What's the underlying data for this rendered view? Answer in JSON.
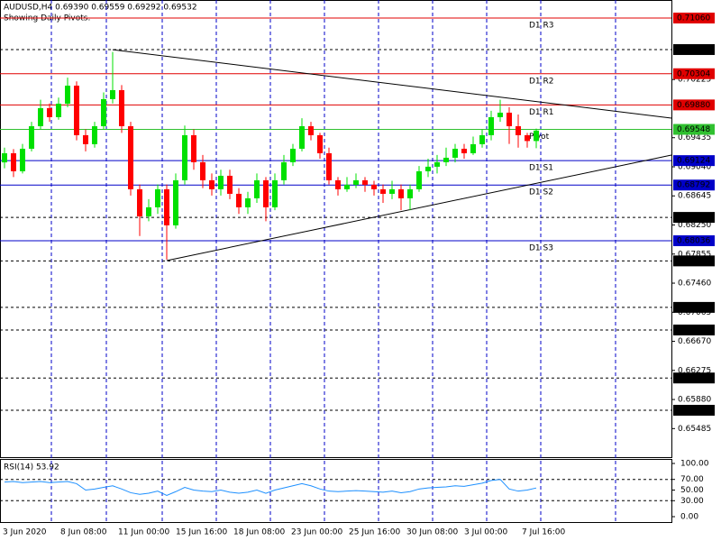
{
  "chart_data": {
    "type": "candlestick",
    "title": "AUDUSD,H4  0.69390 0.69559 0.69292 0.69532",
    "subtitle": "Showing Daily Pivots.",
    "ylim": [
      0.65085,
      0.71305
    ],
    "yticks": [
      0.70225,
      0.69435,
      {
        "value": 0.6904,
        "label": "0.69040"
      },
      0.68645,
      {
        "value": 0.6825,
        "label": "0.68250"
      },
      0.67855,
      {
        "value": 0.6746,
        "label": "0.67460"
      },
      0.67065,
      {
        "value": 0.6667,
        "label": "0.66670"
      },
      0.66275,
      {
        "value": 0.6588,
        "label": "0.65880"
      },
      0.65485
    ],
    "levels": [
      {
        "value": 0.7106,
        "label": "0.71060",
        "name": "D1 R3",
        "color": "#e00000"
      },
      {
        "value": 0.70632,
        "label": "0.70632",
        "color": "#000000"
      },
      {
        "value": 0.70304,
        "label": "0.70304",
        "name": "D1 R2",
        "color": "#e00000"
      },
      {
        "value": 0.6988,
        "label": "0.69880",
        "name": "D1 R1",
        "color": "#e00000"
      },
      {
        "value": 0.69548,
        "label": "0.69548",
        "name": "Pivot",
        "color": "#30c030"
      },
      {
        "value": 0.69124,
        "label": "0.69124",
        "name": "D1 S1",
        "color": "#0000c8"
      },
      {
        "value": 0.68792,
        "label": "0.68792",
        "name": "D1 S2",
        "color": "#0000c8"
      },
      {
        "value": 0.68353,
        "label": "0.68353",
        "color": "#000000"
      },
      {
        "value": 0.68036,
        "label": "0.68036",
        "name": "D1 S3",
        "color": "#0000c8"
      },
      {
        "value": 0.67762,
        "label": "0.67762",
        "color": "#000000"
      },
      {
        "value": 0.67131,
        "label": "0.67131",
        "color": "#000000"
      },
      {
        "value": 0.66824,
        "label": "0.66824",
        "color": "#000000"
      },
      {
        "value": 0.66172,
        "label": "0.66172",
        "color": "#000000"
      },
      {
        "value": 0.65734,
        "label": "0.65734",
        "color": "#000000"
      }
    ],
    "x_labels": [
      "3 Jun 2020",
      "8 Jun 08:00",
      "11 Jun 00:00",
      "15 Jun 16:00",
      "18 Jun 08:00",
      "23 Jun 00:00",
      "25 Jun 16:00",
      "30 Jun 08:00",
      "3 Jul 00:00",
      "7 Jul 16:00"
    ],
    "up_color": "#00e000",
    "down_color": "#ff0000",
    "candles": [
      [
        0.691,
        0.693,
        0.6902,
        0.69224
      ],
      [
        0.69224,
        0.6928,
        0.689,
        0.68979
      ],
      [
        0.68979,
        0.6935,
        0.6895,
        0.69285
      ],
      [
        0.69285,
        0.6965,
        0.6925,
        0.69591
      ],
      [
        0.69591,
        0.6995,
        0.6955,
        0.69836
      ],
      [
        0.69836,
        0.699,
        0.6965,
        0.69714
      ],
      [
        0.69714,
        0.6998,
        0.6968,
        0.69897
      ],
      [
        0.69897,
        0.7025,
        0.6985,
        0.70142
      ],
      [
        0.70142,
        0.702,
        0.694,
        0.69469
      ],
      [
        0.69469,
        0.6955,
        0.6925,
        0.69347
      ],
      [
        0.69347,
        0.6965,
        0.693,
        0.69591
      ],
      [
        0.69591,
        0.7005,
        0.6955,
        0.69959
      ],
      [
        0.69959,
        0.706,
        0.699,
        0.70081
      ],
      [
        0.70081,
        0.7015,
        0.695,
        0.69591
      ],
      [
        0.69591,
        0.6965,
        0.6865,
        0.68735
      ],
      [
        0.68735,
        0.688,
        0.681,
        0.68367
      ],
      [
        0.68367,
        0.686,
        0.683,
        0.6849
      ],
      [
        0.6849,
        0.688,
        0.684,
        0.68735
      ],
      [
        0.68735,
        0.688,
        0.6778,
        0.68245
      ],
      [
        0.68245,
        0.6895,
        0.682,
        0.68857
      ],
      [
        0.68857,
        0.696,
        0.688,
        0.69469
      ],
      [
        0.69469,
        0.6955,
        0.69,
        0.69102
      ],
      [
        0.69102,
        0.692,
        0.6875,
        0.68857
      ],
      [
        0.68857,
        0.6895,
        0.6865,
        0.68735
      ],
      [
        0.68735,
        0.69,
        0.6865,
        0.68918
      ],
      [
        0.68918,
        0.69,
        0.686,
        0.68673
      ],
      [
        0.68673,
        0.6875,
        0.684,
        0.6849
      ],
      [
        0.6849,
        0.687,
        0.684,
        0.68612
      ],
      [
        0.68612,
        0.6895,
        0.6855,
        0.68857
      ],
      [
        0.68857,
        0.689,
        0.683,
        0.6849
      ],
      [
        0.6849,
        0.6895,
        0.6845,
        0.68857
      ],
      [
        0.68857,
        0.692,
        0.688,
        0.69102
      ],
      [
        0.69102,
        0.6935,
        0.6905,
        0.69285
      ],
      [
        0.69285,
        0.697,
        0.6925,
        0.69591
      ],
      [
        0.69591,
        0.6965,
        0.694,
        0.69469
      ],
      [
        0.69469,
        0.695,
        0.6915,
        0.69224
      ],
      [
        0.69224,
        0.693,
        0.688,
        0.68857
      ],
      [
        0.68857,
        0.689,
        0.6865,
        0.68735
      ],
      [
        0.68735,
        0.689,
        0.687,
        0.68796
      ],
      [
        0.68796,
        0.6895,
        0.6875,
        0.68857
      ],
      [
        0.68857,
        0.689,
        0.687,
        0.68796
      ],
      [
        0.68796,
        0.6885,
        0.6865,
        0.68735
      ],
      [
        0.68735,
        0.688,
        0.6855,
        0.68673
      ],
      [
        0.68673,
        0.6885,
        0.686,
        0.68735
      ],
      [
        0.68735,
        0.688,
        0.6845,
        0.68612
      ],
      [
        0.68612,
        0.688,
        0.6845,
        0.68735
      ],
      [
        0.68735,
        0.6905,
        0.687,
        0.68979
      ],
      [
        0.68979,
        0.6915,
        0.689,
        0.69041
      ],
      [
        0.69041,
        0.692,
        0.6895,
        0.69102
      ],
      [
        0.69102,
        0.693,
        0.6905,
        0.69163
      ],
      [
        0.69163,
        0.6935,
        0.691,
        0.69285
      ],
      [
        0.69285,
        0.6935,
        0.6915,
        0.69224
      ],
      [
        0.69224,
        0.6945,
        0.692,
        0.69347
      ],
      [
        0.69347,
        0.6955,
        0.693,
        0.69469
      ],
      [
        0.69469,
        0.698,
        0.694,
        0.69714
      ],
      [
        0.69714,
        0.6995,
        0.6965,
        0.69775
      ],
      [
        0.69775,
        0.6985,
        0.6935,
        0.69591
      ],
      [
        0.69591,
        0.6975,
        0.693,
        0.69469
      ],
      [
        0.69469,
        0.695,
        0.693,
        0.6939
      ],
      [
        0.6939,
        0.69559,
        0.69292,
        0.69532
      ]
    ],
    "trendlines": [
      [
        [
          12,
          0.7063
        ],
        [
          74,
          0.69701
        ]
      ],
      [
        [
          18,
          0.67767
        ],
        [
          74,
          0.69199
        ]
      ]
    ],
    "rsi": {
      "label": "RSI(14) 53.92",
      "color": "#1e90ff",
      "ylim": [
        0,
        100
      ],
      "yticks": [
        {
          "value": 100,
          "label": "100.00"
        },
        {
          "value": 70,
          "label": "70.00"
        },
        {
          "value": 50,
          "label": "50.00"
        },
        {
          "value": 30,
          "label": "30.00"
        },
        {
          "value": 0,
          "label": "0.00"
        }
      ],
      "levels": [
        70,
        30
      ],
      "values": [
        65,
        66,
        64,
        65,
        66,
        64,
        65,
        66,
        62,
        50,
        52,
        55,
        58,
        52,
        45,
        42,
        44,
        48,
        40,
        47,
        55,
        50,
        48,
        47,
        50,
        46,
        44,
        46,
        50,
        44,
        50,
        54,
        58,
        62,
        58,
        52,
        48,
        47,
        48,
        49,
        48,
        47,
        46,
        48,
        45,
        47,
        52,
        54,
        55,
        56,
        58,
        57,
        60,
        63,
        68,
        70,
        52,
        48,
        50,
        53.92
      ]
    }
  }
}
